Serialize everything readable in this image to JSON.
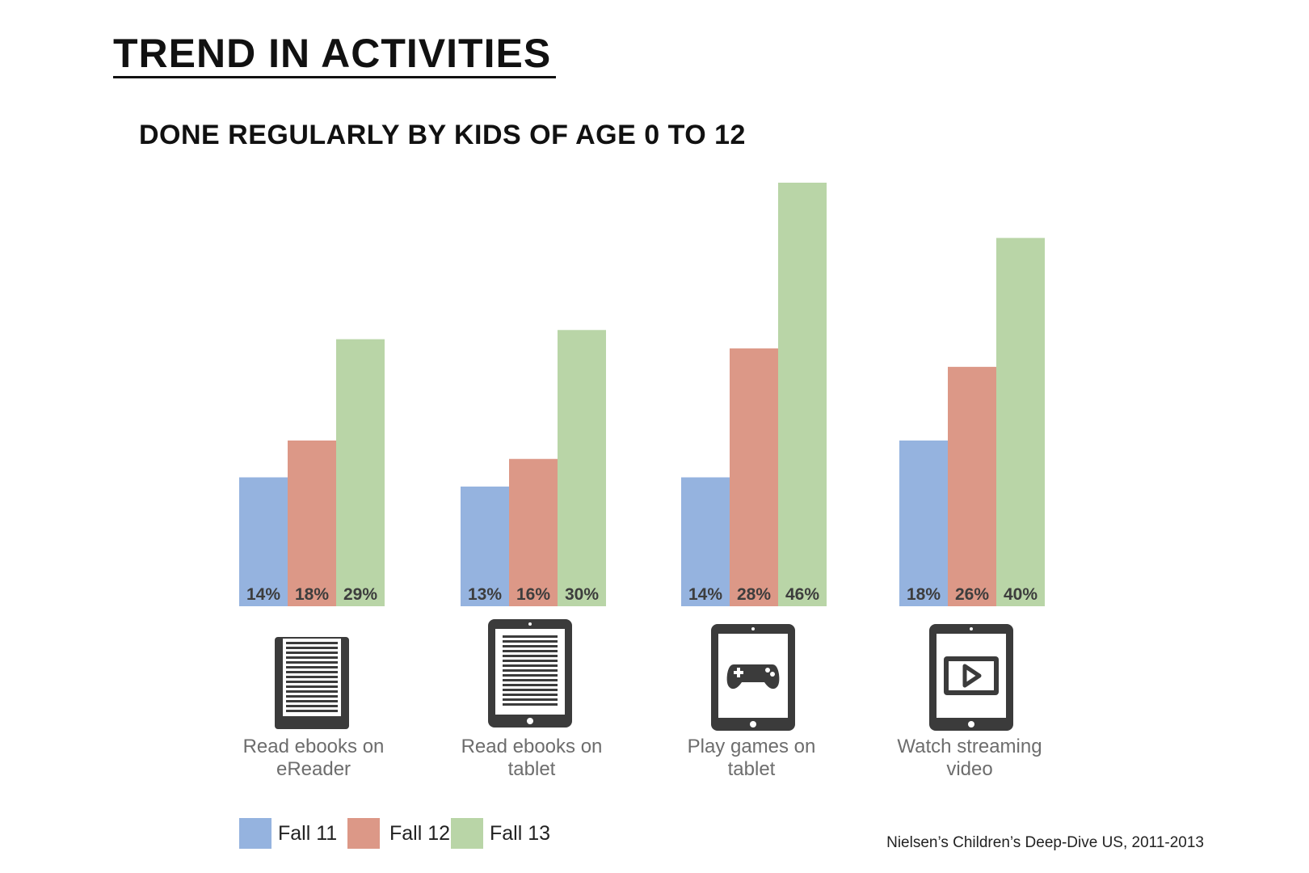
{
  "colors": {
    "fall11": "#95b3df",
    "fall12": "#dc9887",
    "fall13": "#b9d5a7",
    "label": "#3d3d3d",
    "icon": "#3b3b3b"
  },
  "chart_data": {
    "type": "bar",
    "title": "TREND IN ACTIVITIES",
    "subtitle": "DONE REGULARLY BY KIDS OF AGE 0 TO 12",
    "categories": [
      "Read ebooks on\neReader",
      "Read ebooks on\ntablet",
      "Play games on\ntablet",
      "Watch streaming\nvideo"
    ],
    "icons": [
      "ereader-icon",
      "tablet-ebook-icon",
      "tablet-game-controller-icon",
      "tablet-play-video-icon"
    ],
    "series": [
      {
        "name": "Fall 11",
        "values": [
          14,
          13,
          14,
          18
        ],
        "labels": [
          "14%",
          "13%",
          "14%",
          "18%"
        ]
      },
      {
        "name": "Fall 12",
        "values": [
          18,
          16,
          28,
          26
        ],
        "labels": [
          "18%",
          "16%",
          "28%",
          "26%"
        ]
      },
      {
        "name": "Fall 13",
        "values": [
          29,
          30,
          46,
          40
        ],
        "labels": [
          "29%",
          "30%",
          "46%",
          "40%"
        ]
      }
    ],
    "ylim": [
      0,
      46
    ],
    "legend": "bottom-left",
    "source": "Nielsen’s Children’s Deep-Dive US, 2011-2013"
  }
}
